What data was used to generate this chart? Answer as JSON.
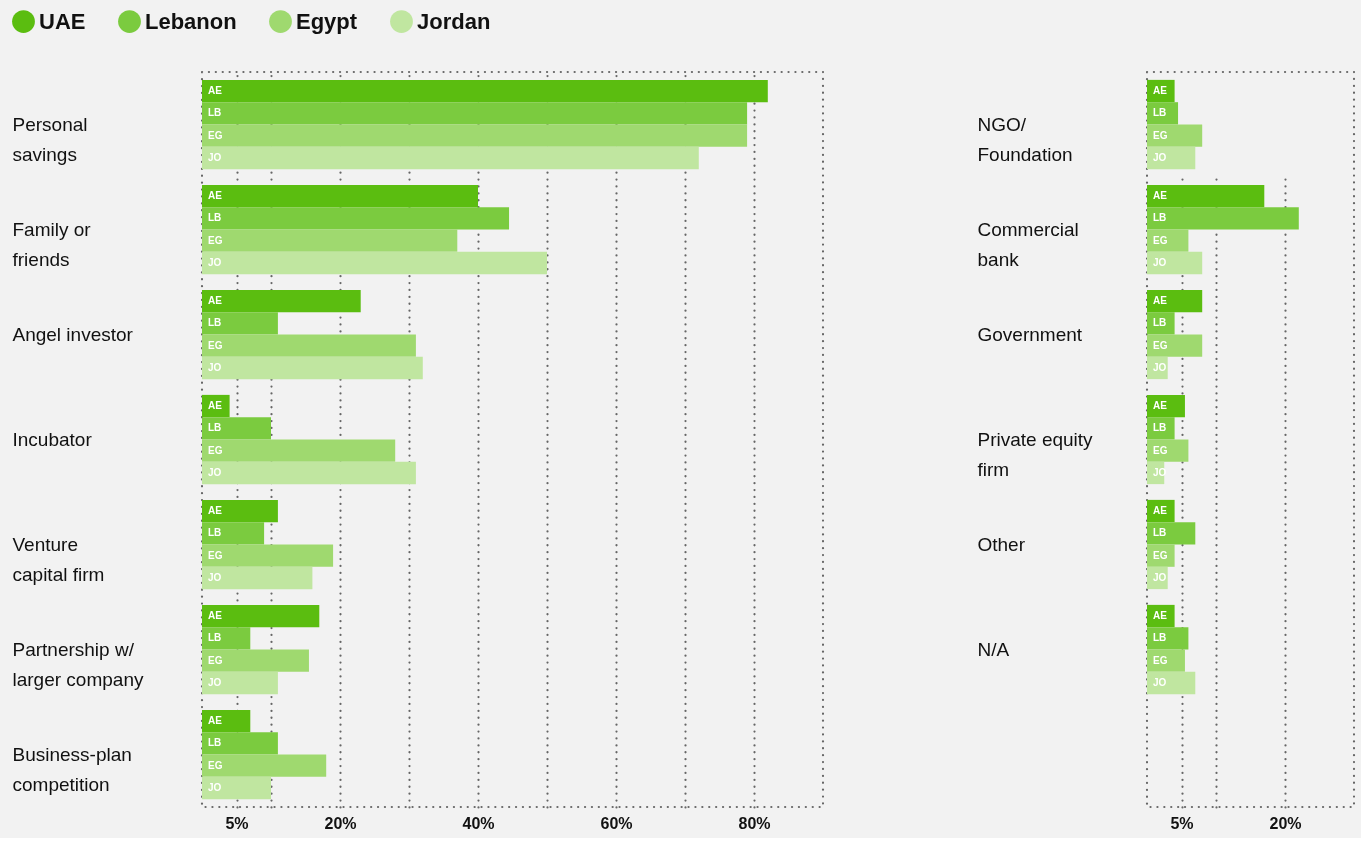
{
  "chart_data": [
    {
      "type": "bar",
      "orientation": "horizontal",
      "legend": "top left",
      "grid": "x",
      "categories": [
        "Personal savings",
        "Family or friends",
        "Angel investor",
        "Incubator",
        "Venture capital firm",
        "Partnership w/ larger company",
        "Business-plan competition"
      ],
      "xlim": [
        0,
        90
      ],
      "xticks": [
        {
          "value": 5,
          "label": "5%"
        },
        {
          "value": 10,
          "label": null
        },
        {
          "value": 20,
          "label": "20%"
        },
        {
          "value": 30,
          "label": null
        },
        {
          "value": 40,
          "label": "40%"
        },
        {
          "value": 50,
          "label": null
        },
        {
          "value": 60,
          "label": "60%"
        },
        {
          "value": 70,
          "label": null
        },
        {
          "value": 80,
          "label": "80%"
        }
      ],
      "series": [
        {
          "name": "UAE",
          "color": "#5bbd10",
          "values": [
            82,
            40,
            23,
            4,
            11,
            17,
            7
          ],
          "value_labels": [
            "AE",
            "AE",
            "AE",
            "AE",
            "AE",
            "AE",
            "AE"
          ]
        },
        {
          "name": "Lebanon",
          "color": "#7bcb3f",
          "values": [
            79,
            44.5,
            11,
            10,
            9,
            7,
            11
          ],
          "value_labels": [
            "LB",
            "LB",
            "LB",
            "LB",
            "LB",
            "LB",
            "LB"
          ]
        },
        {
          "name": "Egypt",
          "color": "#9fd96f",
          "values": [
            79,
            37,
            31,
            28,
            19,
            15.5,
            18
          ],
          "value_labels": [
            "EG",
            "EG",
            "EG",
            "EG",
            "EG",
            "EG",
            "EG"
          ]
        },
        {
          "name": "Jordan",
          "color": "#c0e6a0",
          "values": [
            72,
            50,
            32,
            31,
            16,
            11,
            10
          ],
          "value_labels": [
            "JO",
            "JO",
            "JO",
            "JO",
            "JO",
            "JO",
            "JO"
          ]
        }
      ]
    },
    {
      "type": "bar",
      "orientation": "horizontal",
      "grid": "x",
      "categories": [
        "NGO/ Foundation",
        "Commercial bank",
        "Government",
        "Private equity firm",
        "Other",
        "N/A"
      ],
      "xlim": [
        0,
        30
      ],
      "xticks": [
        {
          "value": 5,
          "label": "5%"
        },
        {
          "value": 10,
          "label": null
        },
        {
          "value": 20,
          "label": "20%"
        }
      ],
      "series": [
        {
          "color": "#5bbd10",
          "values": [
            4,
            17,
            8,
            5.5,
            4,
            4
          ],
          "value_labels": [
            "AE",
            "AE",
            "AE",
            "AE",
            "AE",
            "AE"
          ]
        },
        {
          "color": "#7bcb3f",
          "values": [
            4.5,
            22,
            4,
            4,
            7,
            6
          ],
          "value_labels": [
            "LB",
            "LB",
            "LB",
            "LB",
            "LB",
            "LB"
          ]
        },
        {
          "color": "#9fd96f",
          "values": [
            8,
            6,
            8,
            6,
            4,
            5.5
          ],
          "value_labels": [
            "EG",
            "EG",
            "EG",
            "EG",
            "EG",
            "EG"
          ]
        },
        {
          "color": "#c0e6a0",
          "values": [
            7,
            8,
            3,
            2.5,
            3,
            7
          ],
          "value_labels": [
            "JO",
            "JO",
            "JO",
            "JO",
            "JO",
            "JO"
          ]
        }
      ]
    }
  ]
}
